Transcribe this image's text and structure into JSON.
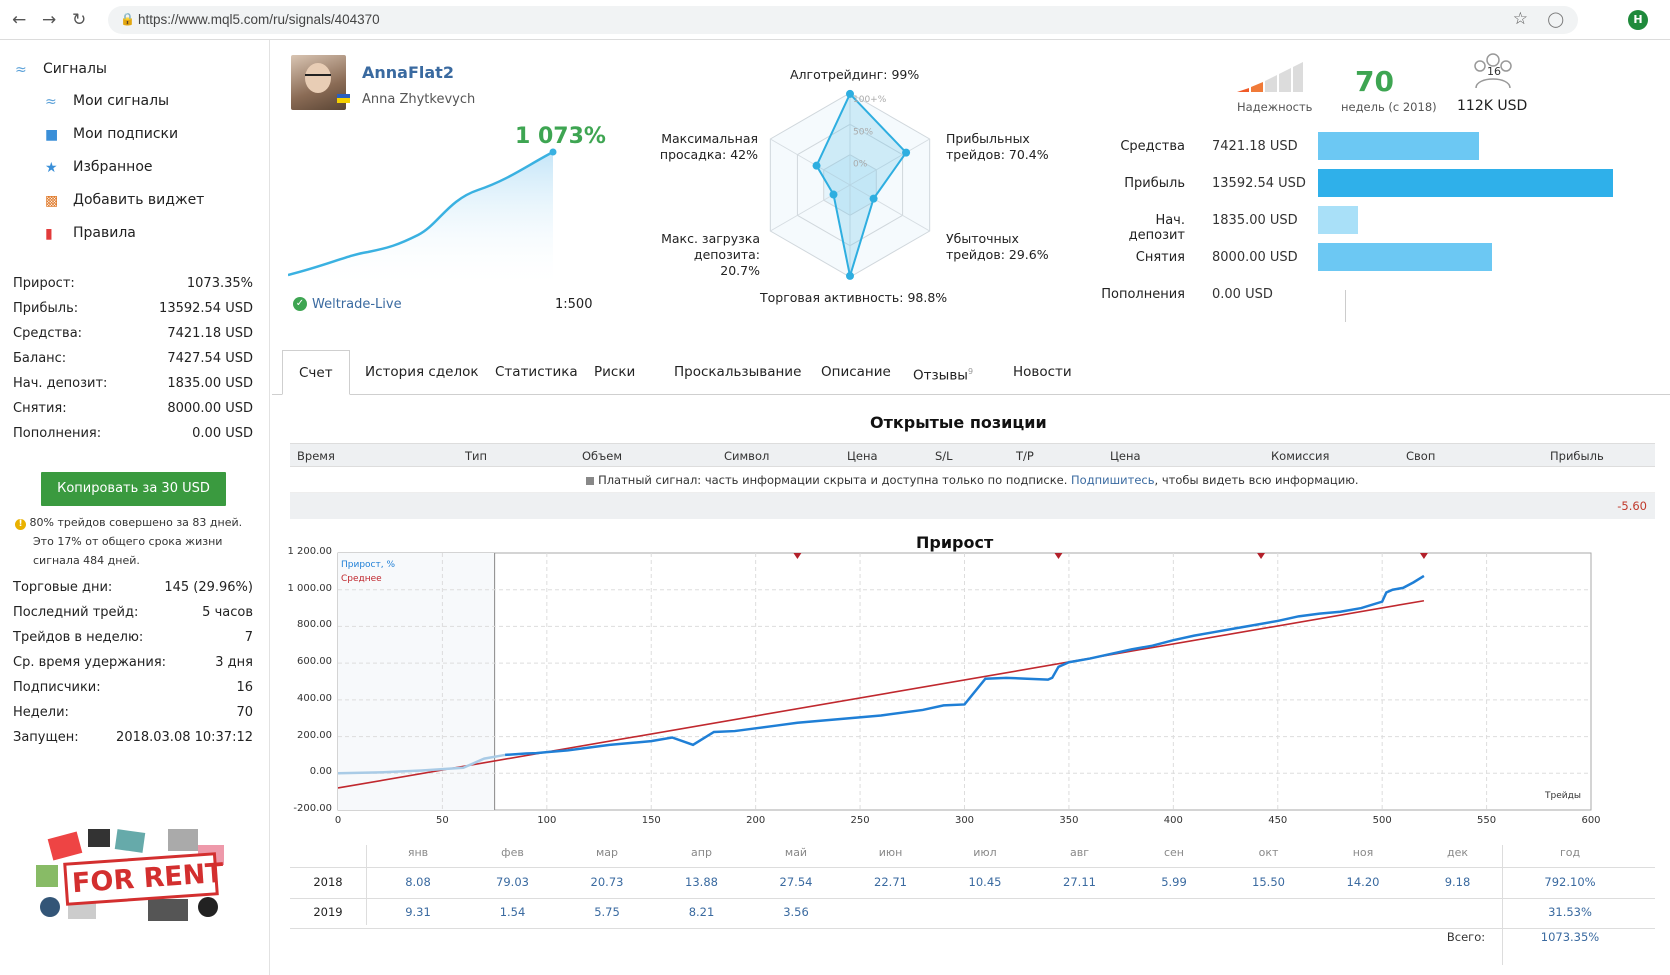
{
  "browser": {
    "url": "https://www.mql5.com/ru/signals/404370",
    "profile_initial": "H"
  },
  "sidebar": {
    "title": "Сигналы",
    "items": [
      {
        "label": "Мои сигналы",
        "icon": "signal-icon"
      },
      {
        "label": "Мои подписки",
        "icon": "subscription-icon"
      },
      {
        "label": "Избранное",
        "icon": "star-icon"
      },
      {
        "label": "Добавить виджет",
        "icon": "widget-icon"
      },
      {
        "label": "Правила",
        "icon": "bookmark-icon"
      }
    ],
    "stats": [
      {
        "label": "Прирост:",
        "value": "1073.35%"
      },
      {
        "label": "Прибыль:",
        "value": "13592.54 USD"
      },
      {
        "label": "Средства:",
        "value": "7421.18 USD"
      },
      {
        "label": "Баланс:",
        "value": "7427.54 USD"
      },
      {
        "label": "Нач. депозит:",
        "value": "1835.00 USD"
      },
      {
        "label": "Снятия:",
        "value": "8000.00 USD"
      },
      {
        "label": "Пополнения:",
        "value": "0.00 USD"
      }
    ],
    "copy_button": "Копировать за 30 USD",
    "note_lines": [
      "80% трейдов совершено за 83 дней.",
      "Это 17% от общего срока жизни",
      "сигнала 484 дней."
    ],
    "stats2": [
      {
        "label": "Торговые дни:",
        "value": "145 (29.96%)"
      },
      {
        "label": "Последний трейд:",
        "value": "5 часов"
      },
      {
        "label": "Трейдов в неделю:",
        "value": "7"
      },
      {
        "label": "Ср. время удержания:",
        "value": "3 дня"
      },
      {
        "label": "Подписчики:",
        "value": "16"
      },
      {
        "label": "Недели:",
        "value": "70"
      },
      {
        "label": "Запущен:",
        "value": "2018.03.08 10:37:12"
      }
    ],
    "for_rent": "FOR RENT"
  },
  "header": {
    "trader": "AnnaFlat2",
    "real_name": "Anna Zhytkevych",
    "growth": "1 073%",
    "broker": "Weltrade-Live",
    "leverage": "1:500",
    "radar": {
      "top": "Алготрейдинг: 99%",
      "top_right": [
        "Прибыльных",
        "трейдов: 70.4%"
      ],
      "bottom_right": [
        "Убыточных",
        "трейдов: 29.6%"
      ],
      "bottom": "Торговая активность: 98.8%",
      "bottom_left": [
        "Макс. загрузка",
        "депозита: 20.7%"
      ],
      "top_left": [
        "Максимальная",
        "просадка: 42%"
      ],
      "ring_labels": [
        "100+%",
        "50%",
        "0%"
      ],
      "values": [
        0.99,
        0.704,
        0.296,
        0.988,
        0.207,
        0.42
      ]
    },
    "reliability": "Надежность",
    "weeks_value": "70",
    "weeks_label": "недель (с 2018)",
    "subscribers_icon": "16",
    "funds": "112K USD",
    "bars": [
      {
        "label": "Средства",
        "value": "7421.18 USD",
        "amount": 7421.18
      },
      {
        "label": "Прибыль",
        "value": "13592.54 USD",
        "amount": 13592.54
      },
      {
        "label": "Нач. депозит",
        "value": "1835.00 USD",
        "amount": 1835.0
      },
      {
        "label": "Снятия",
        "value": "8000.00 USD",
        "amount": 8000.0
      },
      {
        "label": "Пополнения",
        "value": "0.00 USD",
        "amount": 0
      }
    ]
  },
  "tabs": [
    {
      "label": "Счет",
      "active": true
    },
    {
      "label": "История сделок"
    },
    {
      "label": "Статистика"
    },
    {
      "label": "Риски"
    },
    {
      "label": "Проскальзывание"
    },
    {
      "label": "Описание"
    },
    {
      "label": "Отзывы",
      "badge": "9"
    },
    {
      "label": "Новости"
    }
  ],
  "positions": {
    "title": "Открытые позиции",
    "columns": [
      "Время",
      "Тип",
      "Объем",
      "Символ",
      "Цена",
      "S/L",
      "T/P",
      "Цена",
      "Комиссия",
      "Своп",
      "Прибыль"
    ],
    "note_before": "Платный сигнал: часть информации скрыта и доступна только по подписке.",
    "note_link": "Подпишитесь",
    "note_after": ", чтобы видеть всю информацию.",
    "total": "-5.60"
  },
  "chart_data": {
    "type": "line",
    "title": "Прирост",
    "xlabel": "Трейды",
    "ylabel": "",
    "xlim": [
      0,
      600
    ],
    "ylim": [
      -200,
      1200
    ],
    "x_ticks": [
      0,
      50,
      100,
      150,
      200,
      250,
      300,
      350,
      400,
      450,
      500,
      550,
      600
    ],
    "y_ticks": [
      "-200.00",
      "0.00",
      "200.00",
      "400.00",
      "600.00",
      "800.00",
      "1 000.00",
      "1 200.00"
    ],
    "legend": [
      "Прирост, %",
      "Среднее"
    ],
    "legend_position": "top-left",
    "series": [
      {
        "name": "Прирост, %",
        "color": "#1f7fd6",
        "x": [
          0,
          20,
          40,
          60,
          70,
          80,
          90,
          95,
          100,
          110,
          120,
          130,
          140,
          150,
          160,
          170,
          180,
          190,
          200,
          210,
          220,
          240,
          260,
          280,
          290,
          300,
          310,
          320,
          330,
          340,
          342,
          345,
          350,
          360,
          370,
          380,
          390,
          400,
          410,
          420,
          430,
          440,
          450,
          460,
          470,
          480,
          490,
          500,
          502,
          505,
          510,
          515,
          520
        ],
        "y": [
          0,
          5,
          15,
          30,
          80,
          100,
          108,
          110,
          115,
          125,
          140,
          155,
          165,
          175,
          195,
          155,
          225,
          230,
          245,
          260,
          275,
          295,
          315,
          345,
          370,
          375,
          515,
          520,
          515,
          510,
          520,
          580,
          605,
          625,
          650,
          675,
          695,
          725,
          750,
          770,
          790,
          810,
          830,
          855,
          870,
          880,
          900,
          935,
          985,
          1000,
          1010,
          1040,
          1075
        ]
      },
      {
        "name": "Среднее",
        "color": "#c0282e",
        "x": [
          0,
          520
        ],
        "y": [
          -80,
          940
        ]
      }
    ],
    "x_markers": [
      220,
      345,
      442,
      520
    ],
    "shaded_until_x": 75
  },
  "monthly": {
    "months": [
      "янв",
      "фев",
      "мар",
      "апр",
      "май",
      "июн",
      "июл",
      "авг",
      "сен",
      "окт",
      "ноя",
      "дек"
    ],
    "year_label": "год",
    "rows": [
      {
        "year": "2018",
        "values": [
          "8.08",
          "79.03",
          "20.73",
          "13.88",
          "27.54",
          "22.71",
          "10.45",
          "27.11",
          "5.99",
          "15.50",
          "14.20",
          "9.18"
        ],
        "total": "792.10%"
      },
      {
        "year": "2019",
        "values": [
          "9.31",
          "1.54",
          "5.75",
          "8.21",
          "3.56"
        ],
        "total": "31.53%"
      }
    ],
    "grand_label": "Всего:",
    "grand_total": "1073.35%"
  }
}
